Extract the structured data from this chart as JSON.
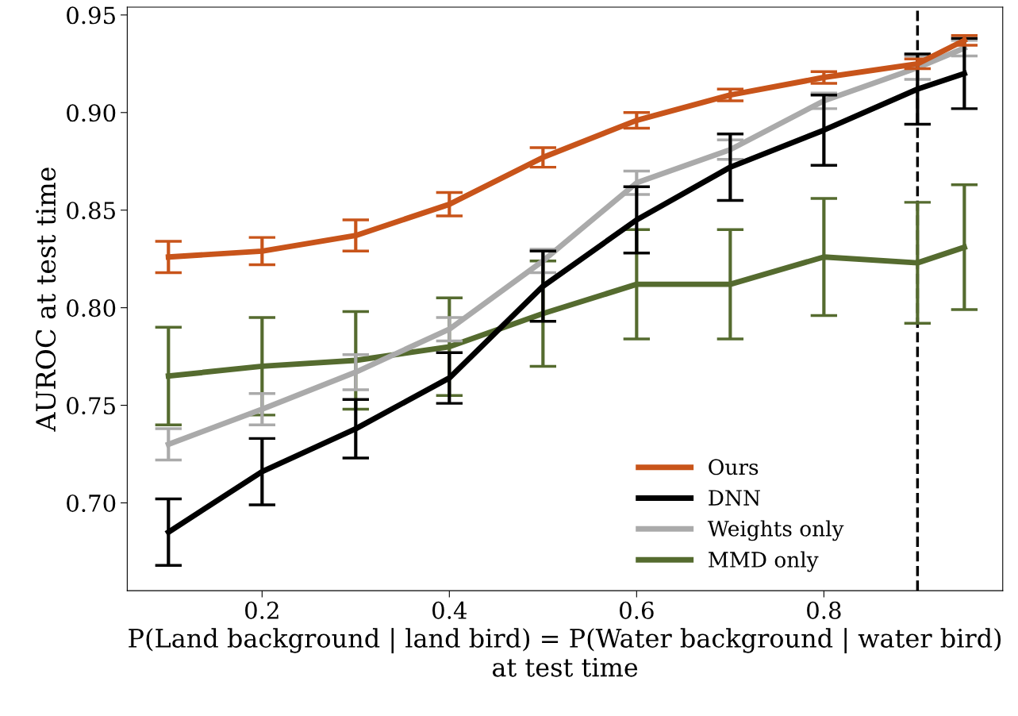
{
  "chart_data": {
    "type": "line",
    "xlabel": "P(Land background | land bird) = P(Water background | water bird)\nat test time",
    "ylabel": "AUROC at test time",
    "x": [
      0.1,
      0.2,
      0.3,
      0.4,
      0.5,
      0.6,
      0.7,
      0.8,
      0.9,
      0.95
    ],
    "series": [
      {
        "name": "Ours",
        "color": "#c8541a",
        "values": [
          0.826,
          0.829,
          0.837,
          0.853,
          0.877,
          0.896,
          0.909,
          0.918,
          0.925,
          0.937
        ],
        "errors": [
          0.008,
          0.007,
          0.008,
          0.006,
          0.005,
          0.004,
          0.003,
          0.003,
          0.0025,
          0.0025
        ]
      },
      {
        "name": "DNN",
        "color": "#000000",
        "values": [
          0.685,
          0.716,
          0.738,
          0.764,
          0.811,
          0.845,
          0.872,
          0.891,
          0.912,
          0.92
        ],
        "errors": [
          0.017,
          0.017,
          0.015,
          0.013,
          0.018,
          0.017,
          0.017,
          0.018,
          0.018,
          0.018
        ]
      },
      {
        "name": "Weights only",
        "color": "#aaaaaa",
        "values": [
          0.73,
          0.748,
          0.767,
          0.789,
          0.824,
          0.864,
          0.881,
          0.906,
          0.923,
          0.933
        ],
        "errors": [
          0.008,
          0.008,
          0.009,
          0.006,
          0.006,
          0.006,
          0.005,
          0.004,
          0.006,
          0.004
        ]
      },
      {
        "name": "MMD only",
        "color": "#556b2f",
        "values": [
          0.765,
          0.77,
          0.773,
          0.78,
          0.797,
          0.812,
          0.812,
          0.826,
          0.823,
          0.831
        ],
        "errors": [
          0.025,
          0.025,
          0.025,
          0.025,
          0.027,
          0.028,
          0.028,
          0.03,
          0.031,
          0.032
        ]
      }
    ],
    "xlim": [
      0.056,
      0.991
    ],
    "ylim": [
      0.655,
      0.954
    ],
    "xticks": [
      {
        "value": 0.2,
        "label": "0.2"
      },
      {
        "value": 0.4,
        "label": "0.4"
      },
      {
        "value": 0.6,
        "label": "0.6"
      },
      {
        "value": 0.8,
        "label": "0.8"
      }
    ],
    "yticks": [
      {
        "value": 0.7,
        "label": "0.70"
      },
      {
        "value": 0.75,
        "label": "0.75"
      },
      {
        "value": 0.8,
        "label": "0.80"
      },
      {
        "value": 0.85,
        "label": "0.85"
      },
      {
        "value": 0.9,
        "label": "0.90"
      },
      {
        "value": 0.95,
        "label": "0.95"
      }
    ],
    "ref_lines": [
      {
        "axis": "x",
        "value": 0.9,
        "color": "#000000",
        "line_style": "dashed"
      }
    ],
    "legend": "bottom right",
    "grid": false,
    "marker": "none",
    "line_style": "solid"
  }
}
